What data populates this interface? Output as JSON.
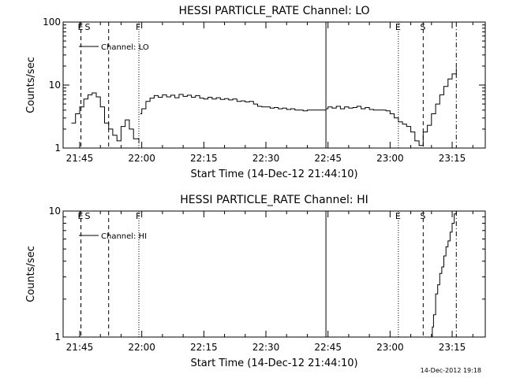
{
  "footer_stamp": "14-Dec-2012 19:18",
  "chart_data": [
    {
      "type": "line",
      "title": "HESSI PARTICLE_RATE Channel: LO",
      "xlabel": "Start Time (14-Dec-12 21:44:10)",
      "ylabel": "Counts/sec",
      "y_scale": "log",
      "ylim": [
        1,
        100
      ],
      "y_ticks": [
        {
          "v": 1,
          "label": "1"
        },
        {
          "v": 10,
          "label": "10"
        },
        {
          "v": 100,
          "label": "100"
        }
      ],
      "xlim_min": [
        41,
        143
      ],
      "x_ticks": [
        {
          "v": 45,
          "label": "21:45"
        },
        {
          "v": 60,
          "label": "22:00"
        },
        {
          "v": 75,
          "label": "22:15"
        },
        {
          "v": 90,
          "label": "22:30"
        },
        {
          "v": 105,
          "label": "22:45"
        },
        {
          "v": 120,
          "label": "23:00"
        },
        {
          "v": 135,
          "label": "23:15"
        }
      ],
      "legend": {
        "label": "Channel: LO",
        "position": "top-left"
      },
      "markers": [
        {
          "x": 45.3,
          "style": "dashed",
          "label": "E"
        },
        {
          "x": 45.3,
          "style": "dashed",
          "label": "S"
        },
        {
          "x": 52.0,
          "style": "dashed",
          "label": ""
        },
        {
          "x": 59.3,
          "style": "dotted",
          "label": "F"
        },
        {
          "x": 104.5,
          "style": "solid",
          "label": ""
        },
        {
          "x": 122.0,
          "style": "dotted",
          "label": "E"
        },
        {
          "x": 128.0,
          "style": "dashed",
          "label": "S"
        },
        {
          "x": 136.0,
          "style": "dashdot",
          "label": ""
        }
      ],
      "series": [
        {
          "segments": [
            [
              [
                43.0,
                2.5
              ],
              [
                44.0,
                3.5
              ],
              [
                45.0,
                4.5
              ],
              [
                46.0,
                6.0
              ],
              [
                47.0,
                7.0
              ],
              [
                48.0,
                7.5
              ],
              [
                49.0,
                6.5
              ],
              [
                50.0,
                4.5
              ],
              [
                51.0,
                2.5
              ],
              [
                52.0,
                2.0
              ],
              [
                53.0,
                1.6
              ],
              [
                54.0,
                1.3
              ],
              [
                55.0,
                2.2
              ],
              [
                56.0,
                2.8
              ],
              [
                57.0,
                2.0
              ],
              [
                58.0,
                1.4
              ],
              [
                59.3,
                1.2
              ]
            ],
            [
              [
                59.6,
                3.5
              ],
              [
                60.0,
                4.2
              ],
              [
                61.0,
                5.5
              ],
              [
                62.0,
                6.2
              ],
              [
                63.0,
                6.8
              ],
              [
                64.0,
                6.4
              ],
              [
                65.0,
                7.0
              ],
              [
                66.0,
                6.5
              ],
              [
                67.0,
                6.9
              ],
              [
                68.0,
                6.3
              ],
              [
                69.0,
                7.1
              ],
              [
                70.0,
                6.6
              ],
              [
                71.0,
                6.9
              ],
              [
                72.0,
                6.4
              ],
              [
                73.0,
                6.8
              ],
              [
                74.0,
                6.2
              ],
              [
                75.0,
                6.0
              ],
              [
                76.0,
                6.4
              ],
              [
                77.0,
                6.0
              ],
              [
                78.0,
                6.3
              ],
              [
                79.0,
                5.9
              ],
              [
                80.0,
                6.1
              ],
              [
                81.0,
                5.8
              ],
              [
                82.0,
                6.0
              ],
              [
                83.0,
                5.5
              ],
              [
                84.0,
                5.6
              ],
              [
                85.0,
                5.4
              ],
              [
                86.0,
                5.5
              ],
              [
                87.0,
                5.0
              ],
              [
                88.0,
                4.6
              ],
              [
                89.0,
                4.5
              ],
              [
                90.0,
                4.5
              ],
              [
                91.0,
                4.3
              ],
              [
                92.0,
                4.4
              ],
              [
                93.0,
                4.2
              ],
              [
                94.0,
                4.3
              ],
              [
                95.0,
                4.1
              ],
              [
                96.0,
                4.2
              ],
              [
                97.0,
                4.0
              ],
              [
                98.0,
                4.0
              ],
              [
                99.0,
                3.9
              ],
              [
                100.0,
                4.0
              ],
              [
                101.0,
                4.0
              ],
              [
                102.0,
                4.0
              ],
              [
                103.0,
                4.0
              ],
              [
                104.0,
                4.0
              ],
              [
                104.5,
                4.0
              ]
            ],
            [
              [
                104.6,
                4.2
              ],
              [
                105.0,
                4.5
              ],
              [
                106.0,
                4.3
              ],
              [
                107.0,
                4.6
              ],
              [
                108.0,
                4.2
              ],
              [
                109.0,
                4.5
              ],
              [
                110.0,
                4.3
              ],
              [
                111.0,
                4.4
              ],
              [
                112.0,
                4.6
              ],
              [
                113.0,
                4.2
              ],
              [
                114.0,
                4.4
              ],
              [
                115.0,
                4.1
              ],
              [
                116.0,
                4.0
              ],
              [
                117.0,
                4.0
              ],
              [
                118.0,
                4.0
              ],
              [
                119.0,
                3.9
              ],
              [
                120.0,
                3.5
              ],
              [
                121.0,
                3.0
              ],
              [
                122.0,
                2.6
              ],
              [
                123.0,
                2.4
              ],
              [
                124.0,
                2.2
              ],
              [
                125.0,
                1.8
              ],
              [
                126.0,
                1.3
              ],
              [
                127.0,
                1.1
              ],
              [
                128.0,
                1.8
              ],
              [
                129.0,
                2.3
              ],
              [
                130.0,
                3.5
              ],
              [
                131.0,
                5.0
              ],
              [
                132.0,
                7.0
              ],
              [
                133.0,
                9.5
              ],
              [
                134.0,
                12.5
              ],
              [
                135.0,
                15.0
              ],
              [
                136.0,
                18.5
              ]
            ]
          ]
        }
      ]
    },
    {
      "type": "line",
      "title": "HESSI PARTICLE_RATE Channel: HI",
      "xlabel": "Start Time (14-Dec-12 21:44:10)",
      "ylabel": "Counts/sec",
      "y_scale": "log",
      "ylim": [
        1,
        10
      ],
      "y_ticks": [
        {
          "v": 1,
          "label": "1"
        },
        {
          "v": 10,
          "label": "10"
        }
      ],
      "xlim_min": [
        41,
        143
      ],
      "x_ticks": [
        {
          "v": 45,
          "label": "21:45"
        },
        {
          "v": 60,
          "label": "22:00"
        },
        {
          "v": 75,
          "label": "22:15"
        },
        {
          "v": 90,
          "label": "22:30"
        },
        {
          "v": 105,
          "label": "22:45"
        },
        {
          "v": 120,
          "label": "23:00"
        },
        {
          "v": 135,
          "label": "23:15"
        }
      ],
      "legend": {
        "label": "Channel: HI",
        "position": "top-left"
      },
      "markers": [
        {
          "x": 45.3,
          "style": "dashed",
          "label": "E"
        },
        {
          "x": 45.3,
          "style": "dashed",
          "label": "S"
        },
        {
          "x": 52.0,
          "style": "dashed",
          "label": ""
        },
        {
          "x": 59.3,
          "style": "dotted",
          "label": "F"
        },
        {
          "x": 104.5,
          "style": "solid",
          "label": ""
        },
        {
          "x": 122.0,
          "style": "dotted",
          "label": "E"
        },
        {
          "x": 128.0,
          "style": "dashed",
          "label": "S"
        },
        {
          "x": 136.0,
          "style": "dashdot",
          "label": ""
        }
      ],
      "series": [
        {
          "segments": [
            [
              [
                130.0,
                1.0
              ],
              [
                130.2,
                1.2
              ],
              [
                130.5,
                1.5
              ],
              [
                131.0,
                2.2
              ],
              [
                131.5,
                2.6
              ],
              [
                132.0,
                3.2
              ],
              [
                132.5,
                3.6
              ],
              [
                133.0,
                4.4
              ],
              [
                133.5,
                5.2
              ],
              [
                134.0,
                5.8
              ],
              [
                134.5,
                6.8
              ],
              [
                135.0,
                8.0
              ],
              [
                135.5,
                9.5
              ],
              [
                136.0,
                10.0
              ]
            ]
          ]
        }
      ]
    }
  ]
}
